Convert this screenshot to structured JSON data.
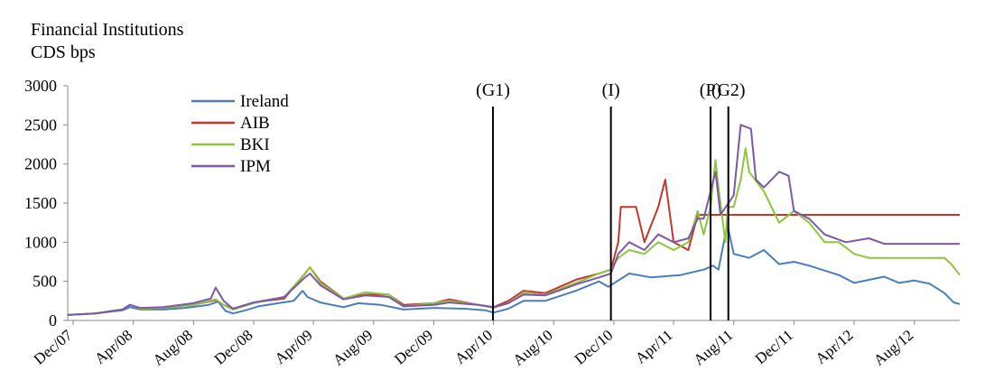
{
  "chart_data": {
    "type": "line",
    "title": "Financial Institutions",
    "ylabel": "CDS bps",
    "ylim": [
      0,
      3000
    ],
    "yticks": [
      0,
      500,
      1000,
      1500,
      2000,
      2500,
      3000
    ],
    "xlim": [
      "2007-11-20",
      "2012-11-01"
    ],
    "xticks": [
      {
        "date": "2007-12-01",
        "label": "Dec/07"
      },
      {
        "date": "2008-04-01",
        "label": "Apr/08"
      },
      {
        "date": "2008-08-01",
        "label": "Aug/08"
      },
      {
        "date": "2008-12-01",
        "label": "Dec/08"
      },
      {
        "date": "2009-04-01",
        "label": "Apr/09"
      },
      {
        "date": "2009-08-01",
        "label": "Aug/09"
      },
      {
        "date": "2009-12-01",
        "label": "Dec/09"
      },
      {
        "date": "2010-04-01",
        "label": "Apr/10"
      },
      {
        "date": "2010-08-01",
        "label": "Aug/10"
      },
      {
        "date": "2010-12-01",
        "label": "Dec/10"
      },
      {
        "date": "2011-04-01",
        "label": "Apr/11"
      },
      {
        "date": "2011-08-01",
        "label": "Aug/11"
      },
      {
        "date": "2011-12-01",
        "label": "Dec/11"
      },
      {
        "date": "2012-04-01",
        "label": "Apr/12"
      },
      {
        "date": "2012-08-01",
        "label": "Aug/12"
      }
    ],
    "grid": false,
    "legend_position": "top-left",
    "series": [
      {
        "name": "Ireland",
        "color": "#4a7ebb",
        "points": [
          [
            "2007-11-20",
            70
          ],
          [
            "2008-01-15",
            90
          ],
          [
            "2008-03-10",
            130
          ],
          [
            "2008-03-25",
            170
          ],
          [
            "2008-04-15",
            140
          ],
          [
            "2008-06-01",
            140
          ],
          [
            "2008-07-15",
            160
          ],
          [
            "2008-09-01",
            200
          ],
          [
            "2008-09-20",
            240
          ],
          [
            "2008-10-05",
            120
          ],
          [
            "2008-10-20",
            90
          ],
          [
            "2008-11-15",
            130
          ],
          [
            "2008-12-10",
            180
          ],
          [
            "2009-01-20",
            220
          ],
          [
            "2009-02-20",
            250
          ],
          [
            "2009-03-10",
            380
          ],
          [
            "2009-03-20",
            300
          ],
          [
            "2009-04-15",
            230
          ],
          [
            "2009-06-01",
            170
          ],
          [
            "2009-07-01",
            220
          ],
          [
            "2009-08-15",
            200
          ],
          [
            "2009-10-01",
            140
          ],
          [
            "2009-12-01",
            160
          ],
          [
            "2010-02-01",
            150
          ],
          [
            "2010-03-15",
            130
          ],
          [
            "2010-04-01",
            100
          ],
          [
            "2010-05-01",
            150
          ],
          [
            "2010-06-01",
            250
          ],
          [
            "2010-07-15",
            250
          ],
          [
            "2010-09-15",
            380
          ],
          [
            "2010-11-01",
            500
          ],
          [
            "2010-11-20",
            430
          ],
          [
            "2011-01-01",
            600
          ],
          [
            "2011-02-15",
            550
          ],
          [
            "2011-04-15",
            580
          ],
          [
            "2011-06-01",
            650
          ],
          [
            "2011-06-20",
            700
          ],
          [
            "2011-07-01",
            650
          ],
          [
            "2011-07-15",
            1100
          ],
          [
            "2011-07-20",
            1200
          ],
          [
            "2011-08-01",
            850
          ],
          [
            "2011-09-01",
            800
          ],
          [
            "2011-10-01",
            900
          ],
          [
            "2011-11-01",
            720
          ],
          [
            "2011-12-01",
            750
          ],
          [
            "2012-01-01",
            700
          ],
          [
            "2012-03-01",
            580
          ],
          [
            "2012-04-01",
            480
          ],
          [
            "2012-06-01",
            560
          ],
          [
            "2012-07-01",
            480
          ],
          [
            "2012-08-01",
            510
          ],
          [
            "2012-09-01",
            470
          ],
          [
            "2012-10-01",
            350
          ],
          [
            "2012-10-20",
            230
          ],
          [
            "2012-11-01",
            210
          ]
        ]
      },
      {
        "name": "AIB",
        "color": "#c0392b",
        "points": [
          [
            "2007-11-20",
            70
          ],
          [
            "2008-01-15",
            90
          ],
          [
            "2008-03-10",
            140
          ],
          [
            "2008-03-25",
            200
          ],
          [
            "2008-04-15",
            150
          ],
          [
            "2008-06-01",
            160
          ],
          [
            "2008-08-01",
            200
          ],
          [
            "2008-09-15",
            260
          ],
          [
            "2008-10-01",
            200
          ],
          [
            "2008-10-20",
            150
          ],
          [
            "2008-12-01",
            230
          ],
          [
            "2009-02-01",
            280
          ],
          [
            "2009-03-15",
            600
          ],
          [
            "2009-03-25",
            680
          ],
          [
            "2009-04-15",
            500
          ],
          [
            "2009-06-01",
            280
          ],
          [
            "2009-07-15",
            330
          ],
          [
            "2009-09-01",
            330
          ],
          [
            "2009-10-01",
            200
          ],
          [
            "2009-12-01",
            220
          ],
          [
            "2010-01-01",
            270
          ],
          [
            "2010-03-01",
            200
          ],
          [
            "2010-04-01",
            170
          ],
          [
            "2010-05-01",
            250
          ],
          [
            "2010-06-01",
            380
          ],
          [
            "2010-07-15",
            350
          ],
          [
            "2010-09-15",
            520
          ],
          [
            "2010-11-01",
            600
          ],
          [
            "2010-11-25",
            650
          ],
          [
            "2010-12-10",
            1000
          ],
          [
            "2010-12-15",
            1450
          ],
          [
            "2011-01-15",
            1450
          ],
          [
            "2011-02-01",
            1000
          ],
          [
            "2011-03-01",
            1450
          ],
          [
            "2011-03-15",
            1800
          ],
          [
            "2011-04-01",
            1000
          ],
          [
            "2011-05-01",
            900
          ],
          [
            "2011-05-20",
            1350
          ],
          [
            "2011-06-01",
            1350
          ],
          [
            "2012-11-01",
            1350
          ]
        ]
      },
      {
        "name": "BKI",
        "color": "#8cc63f",
        "points": [
          [
            "2007-11-20",
            70
          ],
          [
            "2008-01-15",
            90
          ],
          [
            "2008-03-10",
            140
          ],
          [
            "2008-03-25",
            200
          ],
          [
            "2008-04-15",
            150
          ],
          [
            "2008-06-01",
            160
          ],
          [
            "2008-08-01",
            200
          ],
          [
            "2008-09-15",
            270
          ],
          [
            "2008-10-01",
            200
          ],
          [
            "2008-10-20",
            140
          ],
          [
            "2008-12-01",
            220
          ],
          [
            "2009-02-01",
            300
          ],
          [
            "2009-03-15",
            600
          ],
          [
            "2009-03-25",
            680
          ],
          [
            "2009-04-15",
            480
          ],
          [
            "2009-06-01",
            280
          ],
          [
            "2009-07-15",
            360
          ],
          [
            "2009-09-01",
            330
          ],
          [
            "2009-10-01",
            180
          ],
          [
            "2009-12-01",
            220
          ],
          [
            "2010-01-01",
            250
          ],
          [
            "2010-03-01",
            200
          ],
          [
            "2010-04-01",
            160
          ],
          [
            "2010-05-01",
            220
          ],
          [
            "2010-06-01",
            350
          ],
          [
            "2010-07-15",
            330
          ],
          [
            "2010-09-15",
            480
          ],
          [
            "2010-11-01",
            600
          ],
          [
            "2010-11-25",
            650
          ],
          [
            "2010-12-10",
            800
          ],
          [
            "2011-01-01",
            900
          ],
          [
            "2011-02-01",
            850
          ],
          [
            "2011-03-01",
            1000
          ],
          [
            "2011-04-01",
            900
          ],
          [
            "2011-05-01",
            1000
          ],
          [
            "2011-05-20",
            1400
          ],
          [
            "2011-06-01",
            1100
          ],
          [
            "2011-06-15",
            1450
          ],
          [
            "2011-06-25",
            2050
          ],
          [
            "2011-07-01",
            1700
          ],
          [
            "2011-07-15",
            1000
          ],
          [
            "2011-07-20",
            1450
          ],
          [
            "2011-08-01",
            1450
          ],
          [
            "2011-08-15",
            1800
          ],
          [
            "2011-08-25",
            2200
          ],
          [
            "2011-09-01",
            1900
          ],
          [
            "2011-10-01",
            1650
          ],
          [
            "2011-11-01",
            1250
          ],
          [
            "2011-12-01",
            1400
          ],
          [
            "2012-01-01",
            1250
          ],
          [
            "2012-02-01",
            1000
          ],
          [
            "2012-03-01",
            1000
          ],
          [
            "2012-04-01",
            850
          ],
          [
            "2012-05-01",
            800
          ],
          [
            "2012-10-01",
            800
          ],
          [
            "2012-10-15",
            720
          ],
          [
            "2012-11-01",
            580
          ]
        ]
      },
      {
        "name": "IPM",
        "color": "#7e57a8",
        "points": [
          [
            "2007-11-20",
            70
          ],
          [
            "2008-01-15",
            90
          ],
          [
            "2008-03-10",
            140
          ],
          [
            "2008-03-25",
            200
          ],
          [
            "2008-04-15",
            160
          ],
          [
            "2008-06-01",
            170
          ],
          [
            "2008-08-01",
            220
          ],
          [
            "2008-09-05",
            280
          ],
          [
            "2008-09-15",
            420
          ],
          [
            "2008-10-01",
            250
          ],
          [
            "2008-10-20",
            150
          ],
          [
            "2008-12-01",
            230
          ],
          [
            "2009-02-01",
            300
          ],
          [
            "2009-03-15",
            550
          ],
          [
            "2009-03-25",
            600
          ],
          [
            "2009-04-15",
            450
          ],
          [
            "2009-06-01",
            270
          ],
          [
            "2009-07-15",
            320
          ],
          [
            "2009-09-01",
            300
          ],
          [
            "2009-10-01",
            180
          ],
          [
            "2009-12-01",
            200
          ],
          [
            "2010-01-01",
            230
          ],
          [
            "2010-03-01",
            200
          ],
          [
            "2010-04-01",
            170
          ],
          [
            "2010-05-01",
            220
          ],
          [
            "2010-06-01",
            330
          ],
          [
            "2010-07-15",
            320
          ],
          [
            "2010-09-15",
            460
          ],
          [
            "2010-11-01",
            550
          ],
          [
            "2010-11-25",
            600
          ],
          [
            "2010-12-10",
            850
          ],
          [
            "2011-01-01",
            1000
          ],
          [
            "2011-02-01",
            900
          ],
          [
            "2011-03-01",
            1100
          ],
          [
            "2011-04-01",
            1000
          ],
          [
            "2011-05-01",
            1050
          ],
          [
            "2011-05-20",
            1300
          ],
          [
            "2011-06-01",
            1300
          ],
          [
            "2011-06-25",
            1900
          ],
          [
            "2011-07-05",
            1350
          ],
          [
            "2011-08-01",
            1600
          ],
          [
            "2011-08-15",
            2500
          ],
          [
            "2011-09-05",
            2450
          ],
          [
            "2011-09-15",
            1800
          ],
          [
            "2011-10-01",
            1700
          ],
          [
            "2011-11-01",
            1900
          ],
          [
            "2011-11-20",
            1850
          ],
          [
            "2011-12-01",
            1400
          ],
          [
            "2012-01-01",
            1300
          ],
          [
            "2012-02-01",
            1100
          ],
          [
            "2012-03-15",
            1000
          ],
          [
            "2012-05-01",
            1050
          ],
          [
            "2012-06-01",
            980
          ],
          [
            "2012-11-01",
            980
          ]
        ]
      }
    ],
    "annotations": [
      {
        "label": "(G1)",
        "date": "2010-03-31"
      },
      {
        "label": "(I)",
        "date": "2010-11-25"
      },
      {
        "label": "(P)",
        "date": "2011-06-15"
      },
      {
        "label": "(G2)",
        "date": "2011-07-21"
      }
    ]
  }
}
